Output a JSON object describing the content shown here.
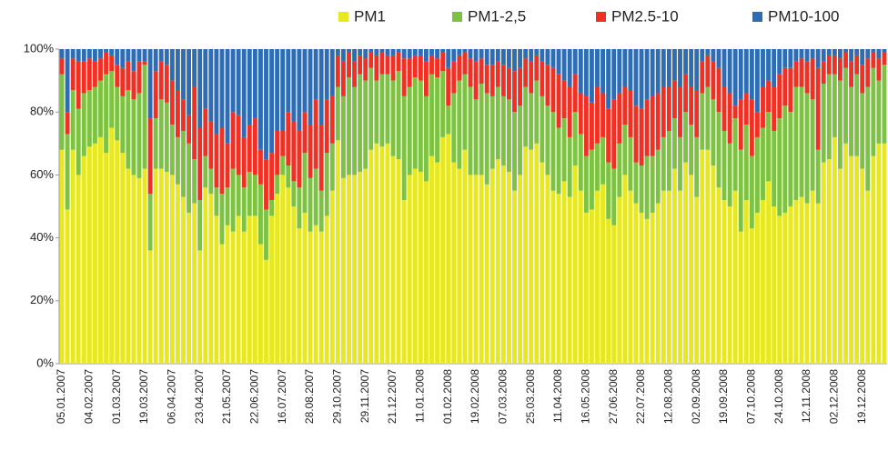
{
  "chart_data": {
    "type": "stacked_bar_100",
    "categories": [
      "05.01.2007",
      null,
      null,
      null,
      null,
      "04.02.2007",
      null,
      null,
      null,
      null,
      "01.03.2007",
      null,
      null,
      null,
      null,
      "19.03.2007",
      null,
      null,
      null,
      null,
      "06.04.2007",
      null,
      null,
      null,
      null,
      "23.04.2007",
      null,
      null,
      null,
      null,
      "21.05.2007",
      null,
      null,
      null,
      null,
      "22.06.2007",
      null,
      null,
      null,
      null,
      "16.07.2007",
      null,
      null,
      null,
      null,
      "28.08.2007",
      null,
      null,
      null,
      null,
      "29.10.2007",
      null,
      null,
      null,
      null,
      "29.11.2007",
      null,
      null,
      null,
      null,
      "21.12.2007",
      null,
      null,
      null,
      null,
      "11.01.2008",
      null,
      null,
      null,
      null,
      "01.02.2008",
      null,
      null,
      null,
      null,
      "19.02.2008",
      null,
      null,
      null,
      null,
      "07.03.2008",
      null,
      null,
      null,
      null,
      "25.03.2008",
      null,
      null,
      null,
      null,
      "11.04.2008",
      null,
      null,
      null,
      null,
      "16.05.2008",
      null,
      null,
      null,
      null,
      "27.06.2008",
      null,
      null,
      null,
      null,
      "22.07.2008",
      null,
      null,
      null,
      null,
      "12.08.2008",
      null,
      null,
      null,
      null,
      "02.09.2008",
      null,
      null,
      null,
      null,
      "19.09.2008",
      null,
      null,
      null,
      null,
      "07.10.2008",
      null,
      null,
      null,
      null,
      "24.10.2008",
      null,
      null,
      null,
      null,
      "12.11.2008",
      null,
      null,
      null,
      null,
      "02.12.2008",
      null,
      null,
      null,
      null,
      "19.12.2008",
      null,
      null,
      null,
      null
    ],
    "series": [
      {
        "name": "PM1",
        "color": "#e8e820",
        "values": [
          68,
          49,
          68,
          60,
          66,
          69,
          70,
          72,
          67,
          75,
          71,
          67,
          62,
          60,
          59,
          62,
          36,
          62,
          62,
          61,
          60,
          57,
          53,
          48,
          51,
          36,
          56,
          54,
          47,
          38,
          44,
          42,
          47,
          42,
          47,
          47,
          38,
          33,
          47,
          54,
          60,
          56,
          50,
          43,
          48,
          42,
          44,
          42,
          47,
          55,
          71,
          59,
          60,
          60,
          61,
          62,
          68,
          70,
          69,
          70,
          66,
          65,
          52,
          60,
          62,
          61,
          58,
          66,
          64,
          72,
          73,
          64,
          62,
          68,
          60,
          60,
          60,
          57,
          62,
          65,
          63,
          61,
          55,
          60,
          69,
          68,
          70,
          64,
          60,
          55,
          54,
          58,
          53,
          63,
          55,
          48,
          49,
          55,
          57,
          46,
          44,
          53,
          60,
          55,
          51,
          48,
          46,
          48,
          51,
          55,
          55,
          62,
          55,
          64,
          60,
          53,
          68,
          68,
          63,
          56,
          52,
          50,
          55,
          42,
          52,
          43,
          48,
          52,
          58,
          50,
          47,
          48,
          50,
          52,
          53,
          51,
          55,
          51,
          64,
          65,
          72,
          62,
          70,
          66,
          66,
          62,
          55,
          66,
          70,
          70
        ]
      },
      {
        "name": "PM1-2,5",
        "color": "#7dc242",
        "values": [
          24,
          24,
          19,
          21,
          20,
          18,
          18,
          18,
          25,
          18,
          17,
          18,
          25,
          24,
          27,
          33,
          18,
          16,
          22,
          22,
          16,
          15,
          21,
          22,
          14,
          16,
          10,
          8,
          9,
          16,
          12,
          20,
          13,
          14,
          14,
          13,
          19,
          16,
          5,
          6,
          6,
          7,
          8,
          13,
          19,
          17,
          18,
          13,
          20,
          15,
          17,
          26,
          31,
          28,
          31,
          28,
          26,
          20,
          23,
          22,
          24,
          28,
          33,
          28,
          29,
          29,
          27,
          26,
          27,
          21,
          9,
          22,
          28,
          24,
          28,
          24,
          29,
          29,
          23,
          23,
          22,
          23,
          25,
          22,
          19,
          18,
          20,
          21,
          22,
          25,
          21,
          20,
          19,
          17,
          18,
          18,
          19,
          15,
          15,
          18,
          18,
          17,
          16,
          17,
          13,
          15,
          20,
          18,
          17,
          17,
          19,
          16,
          17,
          16,
          16,
          19,
          18,
          20,
          21,
          24,
          22,
          20,
          23,
          26,
          24,
          23,
          24,
          23,
          22,
          24,
          31,
          34,
          30,
          36,
          35,
          35,
          29,
          17,
          25,
          27,
          20,
          28,
          24,
          22,
          26,
          24,
          33,
          28,
          20,
          25
        ]
      },
      {
        "name": "PM2.5-10",
        "color": "#ee3124",
        "values": [
          5,
          7,
          10,
          15,
          10,
          10,
          8,
          7,
          7,
          5,
          7,
          9,
          9,
          9,
          10,
          1,
          24,
          15,
          12,
          12,
          14,
          15,
          10,
          9,
          23,
          23,
          15,
          15,
          17,
          21,
          14,
          18,
          19,
          16,
          15,
          18,
          11,
          16,
          15,
          14,
          8,
          17,
          19,
          18,
          13,
          17,
          22,
          21,
          17,
          15,
          10,
          11,
          8,
          8,
          6,
          7,
          5,
          8,
          7,
          6,
          8,
          6,
          12,
          9,
          7,
          8,
          11,
          6,
          6,
          6,
          12,
          10,
          8,
          7,
          9,
          12,
          8,
          9,
          10,
          8,
          10,
          10,
          13,
          12,
          9,
          10,
          8,
          11,
          13,
          14,
          17,
          12,
          16,
          12,
          13,
          19,
          15,
          18,
          14,
          17,
          22,
          16,
          12,
          15,
          18,
          18,
          18,
          19,
          18,
          16,
          14,
          12,
          16,
          12,
          12,
          15,
          10,
          10,
          12,
          14,
          14,
          16,
          4,
          16,
          10,
          18,
          8,
          13,
          10,
          14,
          14,
          12,
          14,
          8,
          9,
          10,
          13,
          26,
          7,
          6,
          6,
          7,
          5,
          8,
          6,
          9,
          9,
          5,
          7,
          4
        ]
      },
      {
        "name": "PM10-100",
        "color": "#2e6db4",
        "values": [
          3,
          20,
          3,
          4,
          4,
          3,
          4,
          3,
          1,
          2,
          5,
          6,
          4,
          7,
          4,
          4,
          22,
          7,
          4,
          5,
          10,
          13,
          16,
          21,
          12,
          25,
          19,
          23,
          27,
          25,
          30,
          20,
          21,
          28,
          24,
          22,
          32,
          35,
          33,
          26,
          26,
          20,
          23,
          26,
          20,
          24,
          16,
          24,
          16,
          15,
          2,
          4,
          1,
          4,
          2,
          3,
          1,
          2,
          1,
          2,
          2,
          1,
          3,
          3,
          2,
          2,
          4,
          2,
          3,
          1,
          6,
          4,
          2,
          1,
          3,
          4,
          3,
          5,
          5,
          4,
          5,
          6,
          7,
          6,
          3,
          4,
          2,
          4,
          5,
          6,
          8,
          10,
          12,
          8,
          14,
          15,
          17,
          12,
          14,
          19,
          16,
          14,
          12,
          13,
          18,
          19,
          16,
          15,
          14,
          12,
          12,
          10,
          12,
          8,
          12,
          13,
          4,
          2,
          4,
          6,
          12,
          14,
          18,
          16,
          14,
          16,
          20,
          12,
          10,
          12,
          8,
          6,
          6,
          4,
          3,
          4,
          3,
          6,
          4,
          2,
          2,
          3,
          1,
          4,
          2,
          5,
          3,
          1,
          3,
          1
        ]
      }
    ],
    "ylim": [
      0,
      100
    ],
    "yticks": [
      {
        "value": 0,
        "label": "0%"
      },
      {
        "value": 20,
        "label": "20%"
      },
      {
        "value": 40,
        "label": "40%"
      },
      {
        "value": 60,
        "label": "60%"
      },
      {
        "value": 80,
        "label": "80%"
      },
      {
        "value": 100,
        "label": "100%"
      }
    ],
    "legend": "top",
    "grid": false
  }
}
